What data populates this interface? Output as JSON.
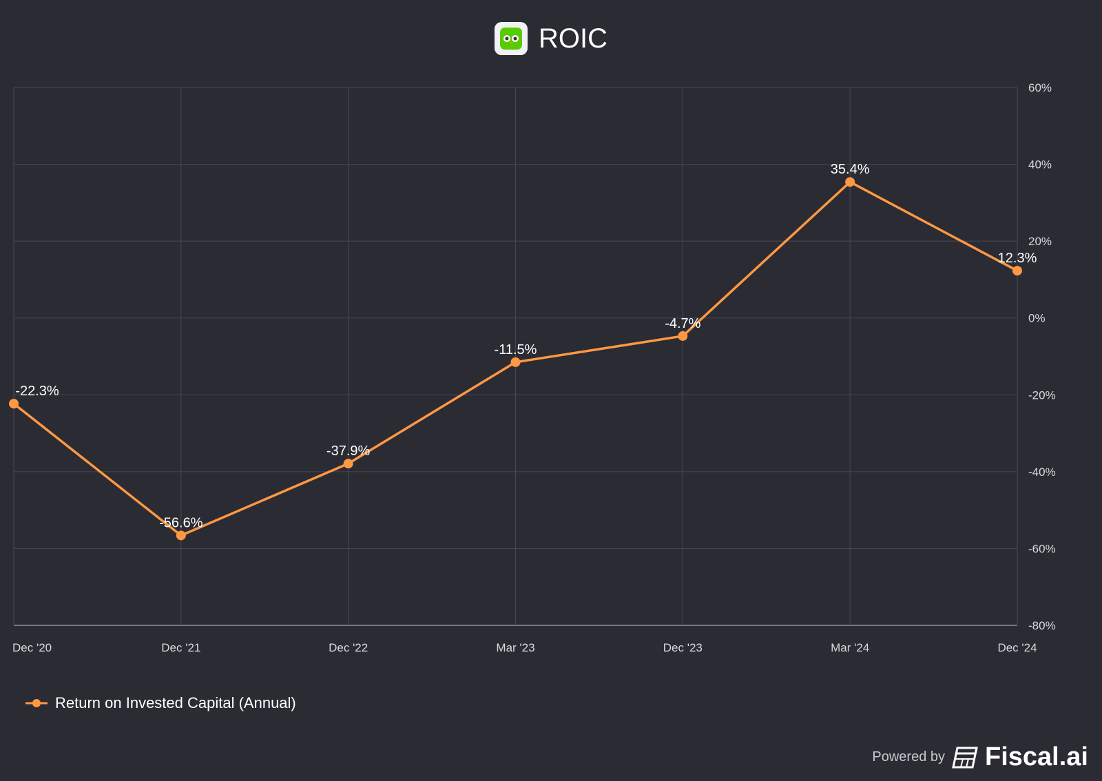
{
  "title": "ROIC",
  "logo_label": "Duolingo",
  "footer": {
    "powered_by": "Powered by",
    "brand": "Fiscal.ai"
  },
  "colors": {
    "line": "#ff9843",
    "grid": "#474852",
    "background": "#2b2b34"
  },
  "chart_data": {
    "type": "line",
    "title": "ROIC",
    "categories": [
      "Dec '20",
      "Dec '21",
      "Dec '22",
      "Mar '23",
      "Dec '23",
      "Mar '24",
      "Dec '24"
    ],
    "series": [
      {
        "name": "Return on Invested Capital (Annual)",
        "values": [
          -22.3,
          -56.6,
          -37.9,
          -11.5,
          -4.7,
          35.4,
          12.3
        ]
      }
    ],
    "data_labels": [
      "-22.3%",
      "-56.6%",
      "-37.9%",
      "-11.5%",
      "-4.7%",
      "35.4%",
      "12.3%"
    ],
    "yticks": [
      60,
      40,
      20,
      0,
      -20,
      -40,
      -60,
      -80
    ],
    "ytick_labels": [
      "60%",
      "40%",
      "20%",
      "0%",
      "-20%",
      "-40%",
      "-60%",
      "-80%"
    ],
    "ylim": [
      -80,
      60
    ],
    "y_axis_position": "right",
    "grid": true,
    "legend": "bottom-left"
  }
}
